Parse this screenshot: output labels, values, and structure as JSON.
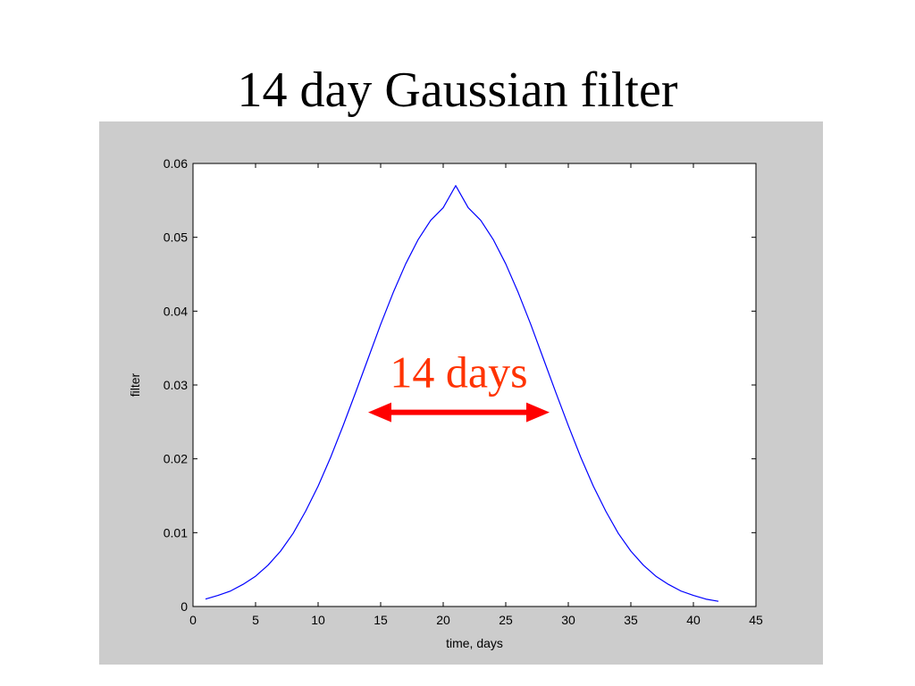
{
  "slide": {
    "title": "14 day Gaussian filter"
  },
  "colors": {
    "panel_background": "#cccccc",
    "plot_background": "#ffffff",
    "series_line": "#0000ff",
    "annotation": "#ff0000",
    "annotation_text": "#ff3300"
  },
  "chart_data": {
    "type": "line",
    "title": "",
    "xlabel": "time, days",
    "ylabel": "filter",
    "xlim": [
      0,
      45
    ],
    "ylim": [
      0,
      0.06
    ],
    "xticks": [
      0,
      5,
      10,
      15,
      20,
      25,
      30,
      35,
      40,
      45
    ],
    "yticks": [
      0,
      0.01,
      0.02,
      0.03,
      0.04,
      0.05,
      0.06
    ],
    "xtick_labels": [
      "0",
      "5",
      "10",
      "15",
      "20",
      "25",
      "30",
      "35",
      "40",
      "45"
    ],
    "ytick_labels": [
      "0",
      "0.01",
      "0.02",
      "0.03",
      "0.04",
      "0.05",
      "0.06"
    ],
    "grid": false,
    "series": [
      {
        "x": [
          1,
          2,
          3,
          4,
          5,
          6,
          7,
          8,
          9,
          10,
          11,
          12,
          13,
          14,
          15,
          16,
          17,
          18,
          19,
          20,
          21,
          22,
          23,
          24,
          25,
          26,
          27,
          28,
          29,
          30,
          31,
          32,
          33,
          34,
          35,
          36,
          37,
          38,
          39,
          40,
          41,
          42
        ],
        "y": [
          0.001,
          0.0015,
          0.0021,
          0.003,
          0.0041,
          0.0056,
          0.0075,
          0.0099,
          0.0129,
          0.0163,
          0.0202,
          0.0245,
          0.029,
          0.0336,
          0.0382,
          0.0425,
          0.0464,
          0.0497,
          0.0523,
          0.054,
          0.057,
          0.054,
          0.0523,
          0.0497,
          0.0464,
          0.0425,
          0.0382,
          0.0336,
          0.029,
          0.0245,
          0.0202,
          0.0163,
          0.0129,
          0.0099,
          0.0075,
          0.0056,
          0.0041,
          0.003,
          0.0021,
          0.0015,
          0.001,
          0.0007
        ]
      }
    ],
    "annotations": [
      {
        "text": "14 days",
        "arrow_x_range": [
          14,
          28.5
        ],
        "arrow_y": 0.0263,
        "double_headed": true
      }
    ]
  }
}
